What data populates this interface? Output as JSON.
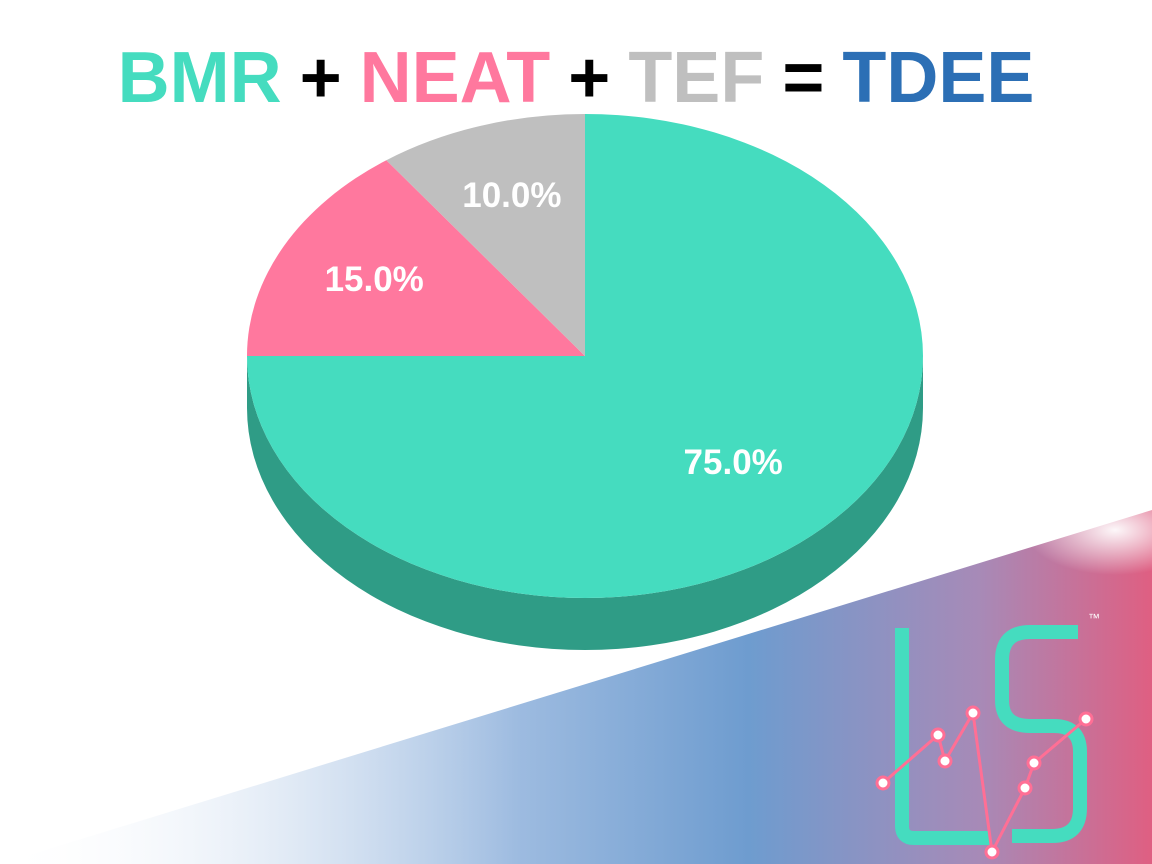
{
  "header": {
    "terms": [
      {
        "text": "BMR",
        "color": "#45dcbf"
      },
      {
        "text": "+",
        "color": "#000000"
      },
      {
        "text": "NEAT",
        "color": "#ff789e"
      },
      {
        "text": "+",
        "color": "#000000"
      },
      {
        "text": "TEF",
        "color": "#bfbfbf"
      },
      {
        "text": "=",
        "color": "#000000"
      },
      {
        "text": "TDEE",
        "color": "#2c6fb5"
      }
    ]
  },
  "chart_data": {
    "type": "pie",
    "title": "BMR + NEAT + TEF = TDEE",
    "style": "3d",
    "slices": [
      {
        "label": "75.0%",
        "value": 75.0,
        "color": "#45dcbf",
        "side_color": "#2f9c86"
      },
      {
        "label": "15.0%",
        "value": 15.0,
        "color": "#ff789e",
        "side_color": "#c9557a"
      },
      {
        "label": "10.0%",
        "value": 10.0,
        "color": "#bfbfbf",
        "side_color": "#8e8e8e"
      }
    ]
  },
  "logo": {
    "letters": "LS",
    "trademark": "™",
    "color": "#45dcbf"
  },
  "colors": {
    "band_blue": "#6e9ccf",
    "band_pink": "#df5f82"
  }
}
